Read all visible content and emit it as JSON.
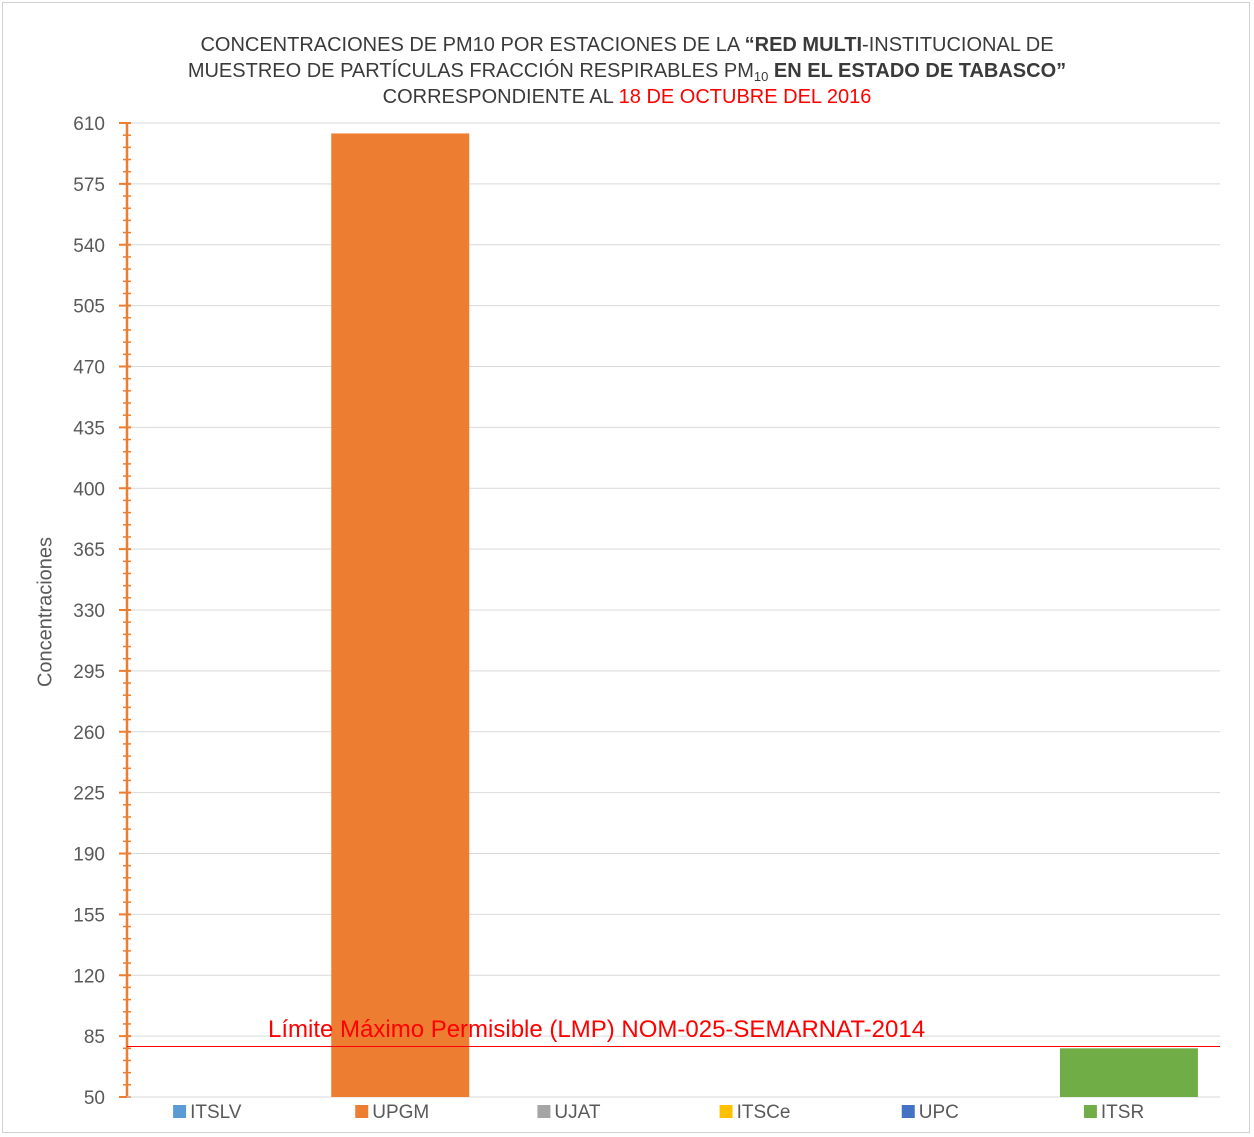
{
  "title": {
    "line1_a": "CONCENTRACIONES  DE PM10 POR ESTACIONES DE LA ",
    "line1_b": "“RED MULTI",
    "line1_c": "-INSTITUCIONAL DE",
    "line2_a": "MUESTREO DE PARTÍCULAS FRACCIÓN RESPIRABLES PM",
    "line2_sub": "10",
    "line2_b": " EN EL ESTADO DE TABASCO”",
    "line3_a": "CORRESPONDIENTE AL ",
    "line3_date": " 18 DE OCTUBRE DEL 2016"
  },
  "chart_data": {
    "type": "bar",
    "ylabel": "Concentraciones",
    "ylim": [
      50,
      610
    ],
    "yticks": [
      50,
      85,
      120,
      155,
      190,
      225,
      260,
      295,
      330,
      365,
      400,
      435,
      470,
      505,
      540,
      575,
      610
    ],
    "grid": true,
    "legend_position": "bottom",
    "series": [
      {
        "name": "ITSLV",
        "value": null,
        "color": "#5b9bd5"
      },
      {
        "name": "UPGM",
        "value": 604,
        "color": "#ed7d31"
      },
      {
        "name": "UJAT",
        "value": null,
        "color": "#a5a5a5"
      },
      {
        "name": "ITSCe",
        "value": null,
        "color": "#ffc000"
      },
      {
        "name": "UPC",
        "value": null,
        "color": "#4472c4"
      },
      {
        "name": "ITSR",
        "value": 78,
        "color": "#70ad47"
      }
    ],
    "reference_line": {
      "value": 79,
      "label": "Límite Máximo Permisible (LMP) NOM-025-SEMARNAT-2014",
      "color": "#ff0000"
    },
    "axis_color": "#ed7d31"
  }
}
